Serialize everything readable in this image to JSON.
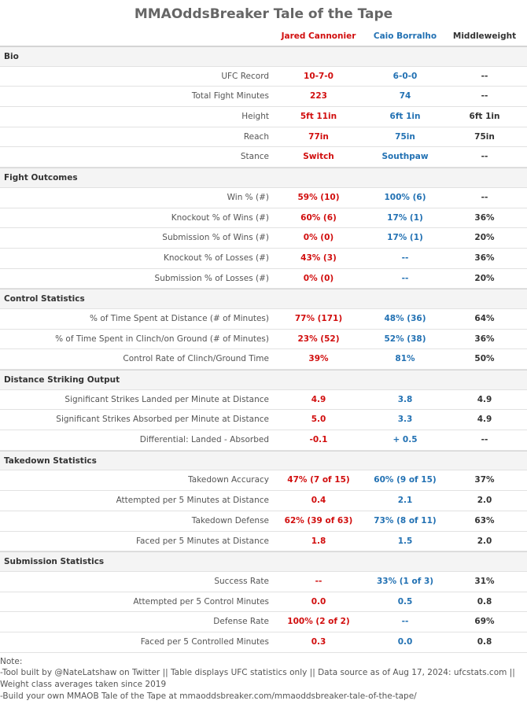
{
  "title": "MMAOddsBreaker Tale of the Tape",
  "header": {
    "columns": [
      "Jared Cannonier",
      "Caio Borralho",
      "Middleweight"
    ]
  },
  "sections": [
    {
      "title": "Bio",
      "rows": [
        {
          "label": "UFC Record",
          "values": [
            "10-7-0",
            "6-0-0",
            "--"
          ]
        },
        {
          "label": "Total Fight Minutes",
          "values": [
            "223",
            "74",
            "--"
          ]
        },
        {
          "label": "Height",
          "values": [
            "5ft 11in",
            "6ft 1in",
            "6ft 1in"
          ]
        },
        {
          "label": "Reach",
          "values": [
            "77in",
            "75in",
            "75in"
          ]
        },
        {
          "label": "Stance",
          "values": [
            "Switch",
            "Southpaw",
            "--"
          ]
        }
      ]
    },
    {
      "title": "Fight Outcomes",
      "rows": [
        {
          "label": "Win % (#)",
          "values": [
            "59% (10)",
            "100% (6)",
            "--"
          ]
        },
        {
          "label": "Knockout % of Wins (#)",
          "values": [
            "60% (6)",
            "17% (1)",
            "36%"
          ]
        },
        {
          "label": "Submission % of Wins (#)",
          "values": [
            "0% (0)",
            "17% (1)",
            "20%"
          ]
        },
        {
          "label": "Knockout % of Losses (#)",
          "values": [
            "43% (3)",
            "--",
            "36%"
          ]
        },
        {
          "label": "Submission % of Losses (#)",
          "values": [
            "0% (0)",
            "--",
            "20%"
          ]
        }
      ]
    },
    {
      "title": "Control Statistics",
      "rows": [
        {
          "label": "% of Time Spent at Distance (# of Minutes)",
          "values": [
            "77% (171)",
            "48% (36)",
            "64%"
          ]
        },
        {
          "label": "% of Time Spent in Clinch/on Ground (# of Minutes)",
          "values": [
            "23% (52)",
            "52% (38)",
            "36%"
          ]
        },
        {
          "label": "Control Rate of Clinch/Ground Time",
          "values": [
            "39%",
            "81%",
            "50%"
          ]
        }
      ]
    },
    {
      "title": "Distance Striking Output",
      "rows": [
        {
          "label": "Significant Strikes Landed per Minute at Distance",
          "values": [
            "4.9",
            "3.8",
            "4.9"
          ]
        },
        {
          "label": "Significant Strikes Absorbed per Minute at Distance",
          "values": [
            "5.0",
            "3.3",
            "4.9"
          ]
        },
        {
          "label": "Differential: Landed - Absorbed",
          "values": [
            "-0.1",
            "+ 0.5",
            "--"
          ]
        }
      ]
    },
    {
      "title": "Takedown Statistics",
      "rows": [
        {
          "label": "Takedown Accuracy",
          "values": [
            "47% (7 of 15)",
            "60% (9 of 15)",
            "37%"
          ]
        },
        {
          "label": "Attempted per 5 Minutes at Distance",
          "values": [
            "0.4",
            "2.1",
            "2.0"
          ]
        },
        {
          "label": "Takedown Defense",
          "values": [
            "62% (39 of 63)",
            "73% (8 of 11)",
            "63%"
          ]
        },
        {
          "label": "Faced per 5 Minutes at Distance",
          "values": [
            "1.8",
            "1.5",
            "2.0"
          ]
        }
      ]
    },
    {
      "title": "Submission Statistics",
      "rows": [
        {
          "label": "Success Rate",
          "values": [
            "--",
            "33% (1 of 3)",
            "31%"
          ]
        },
        {
          "label": "Attempted per 5 Control Minutes",
          "values": [
            "0.0",
            "0.5",
            "0.8"
          ]
        },
        {
          "label": "Defense Rate",
          "values": [
            "100% (2 of 2)",
            "--",
            "69%"
          ]
        },
        {
          "label": "Faced per 5 Controlled Minutes",
          "values": [
            "0.3",
            "0.0",
            "0.8"
          ]
        }
      ]
    }
  ],
  "note": {
    "heading": "Note:",
    "lines": [
      "-Tool built by @NateLatshaw on Twitter || Table displays UFC statistics only || Data source as of Aug 17, 2024: ufcstats.com || Weight class averages taken since 2019",
      "-Build your own MMAOB Tale of the Tape at mmaoddsbreaker.com/mmaoddsbreaker-tale-of-the-tape/"
    ]
  }
}
